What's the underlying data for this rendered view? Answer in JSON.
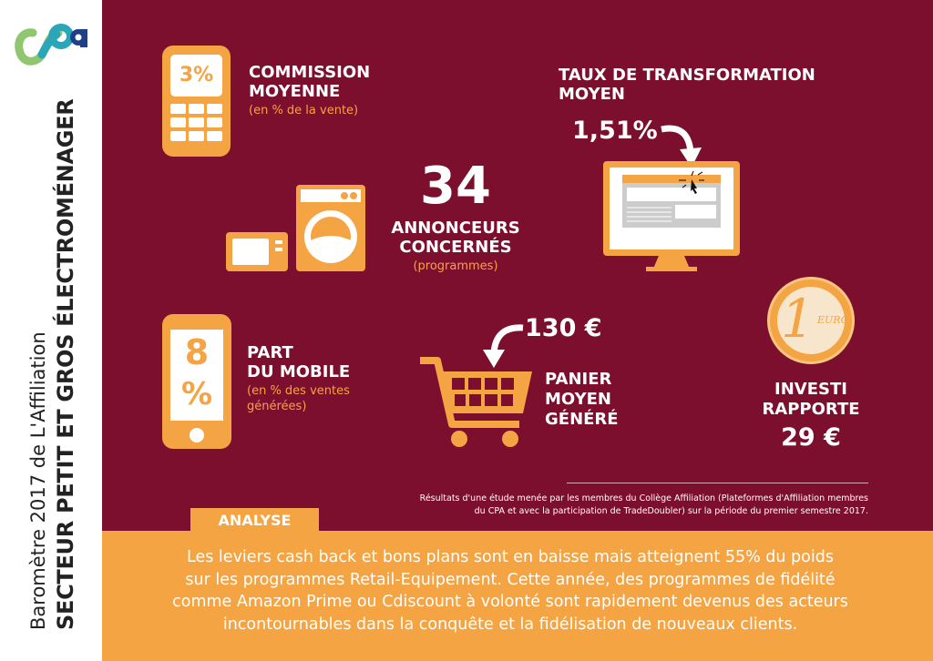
{
  "sidebar": {
    "logo": "cpa",
    "subtitle": "Baromètre 2017 de L'Affiliation",
    "title": "SECTEUR PETIT ET GROS ÉLECTROMÉNAGER"
  },
  "colors": {
    "maroon": "#7d0f2e",
    "orange": "#f4a443",
    "white": "#ffffff"
  },
  "commission": {
    "value": "3%",
    "title1": "COMMISSION",
    "title2": "MOYENNE",
    "note": "(en % de la vente)"
  },
  "advertisers": {
    "value": "34",
    "title1": "ANNONCEURS",
    "title2": "CONCERNÉS",
    "note": "(programmes)"
  },
  "conversion": {
    "title1": "TAUX DE TRANSFORMATION",
    "title2": "MOYEN",
    "value": "1,51%"
  },
  "mobile": {
    "digit": "8",
    "percent": "%",
    "title1": "PART",
    "title2": "DU MOBILE",
    "note1": "(en % des ventes",
    "note2": "générées)"
  },
  "basket": {
    "value": "130 €",
    "title1": "PANIER",
    "title2": "MOYEN",
    "title3": "GÉNÉRÉ"
  },
  "roi": {
    "coin_value": "1",
    "coin_label": "EURO",
    "title1": "INVESTI",
    "title2": "RAPPORTE",
    "value": "29 €"
  },
  "footnote": {
    "line1": "Résultats d'une étude menée par les membres du Collège Affiliation (Plateformes d'Affiliation membres",
    "line2": "du CPA et avec la participation de TradeDoubler) sur la période du premier semestre 2017."
  },
  "analysis": {
    "tab": "ANALYSE",
    "lines": [
      "Les leviers cash back et bons plans sont en baisse mais atteignent 55% du poids",
      "sur les programmes Retail-Equipement. Cette année, des programmes de fidélité",
      "comme Amazon Prime ou Cdiscount à volonté sont rapidement devenus des acteurs",
      "incontournables dans la conquête et la fidélisation de nouveaux clients."
    ]
  }
}
